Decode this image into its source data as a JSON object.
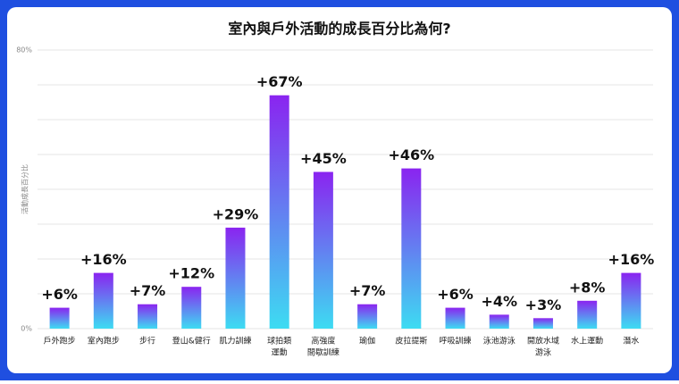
{
  "chart_data": {
    "type": "bar",
    "title": "室內與戶外活動的成長百分比為何?",
    "y_label": "活動成長百分比",
    "categories": [
      "戶外跑步",
      "室內跑步",
      "步行",
      "登山&健行",
      "肌力訓練",
      [
        "球拍類",
        "運動"
      ],
      [
        "高強度",
        "間歇訓練"
      ],
      "瑜伽",
      "皮拉提斯",
      "呼吸訓練",
      "泳池游泳",
      [
        "開放水域",
        "游泳"
      ],
      "水上運動",
      "潛水"
    ],
    "values": [
      6,
      16,
      7,
      12,
      29,
      67,
      45,
      7,
      46,
      6,
      4,
      3,
      8,
      16
    ],
    "value_labels": [
      "+6%",
      "+16%",
      "+7%",
      "+12%",
      "+29%",
      "+67%",
      "+45%",
      "+7%",
      "+46%",
      "+6%",
      "+4%",
      "+3%",
      "+8%",
      "+16%"
    ],
    "colors": [
      "#3ddcf2",
      "#8a24f0"
    ],
    "ylim": [
      0,
      80
    ],
    "yticks": [
      {
        "value": 0,
        "label": "0%"
      },
      {
        "value": 80,
        "label": "80%"
      }
    ],
    "ygrid": [
      0,
      10,
      20,
      30,
      40,
      50,
      60,
      70,
      80
    ],
    "grid": true
  }
}
